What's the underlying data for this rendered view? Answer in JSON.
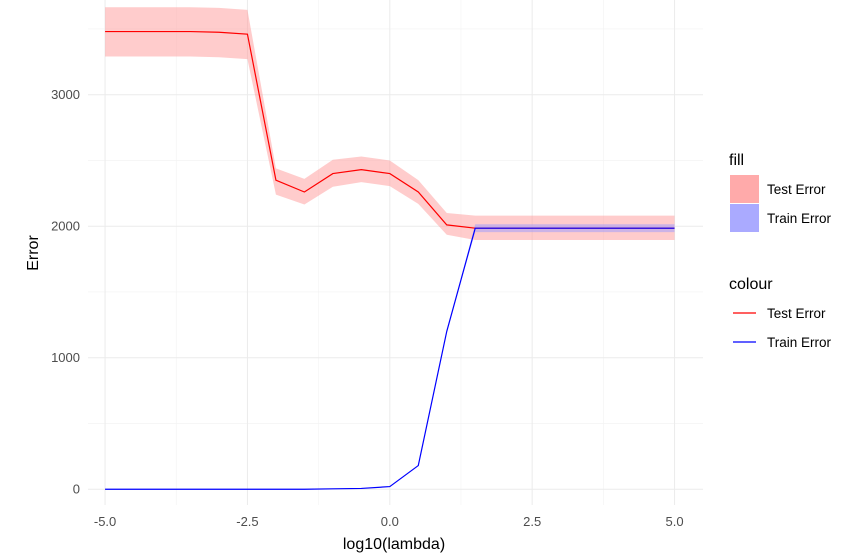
{
  "chart_data": {
    "type": "line",
    "x_values": [
      -5,
      -4.5,
      -4,
      -3.5,
      -3,
      -2.5,
      -2,
      -1.5,
      -1,
      -0.5,
      0,
      0.5,
      1,
      1.5,
      2,
      2.5,
      3,
      3.5,
      4,
      4.5,
      5
    ],
    "series": [
      {
        "name": "Test Error",
        "color": "#ff0000",
        "fill_color": "#ff9999",
        "values": [
          3480,
          3480,
          3480,
          3480,
          3475,
          3460,
          2350,
          2260,
          2400,
          2430,
          2400,
          2260,
          2010,
          1985,
          1985,
          1985,
          1985,
          1985,
          1985,
          1985,
          1985
        ],
        "lower": [
          3290,
          3290,
          3290,
          3290,
          3285,
          3270,
          2240,
          2165,
          2300,
          2335,
          2305,
          2170,
          1935,
          1895,
          1895,
          1895,
          1895,
          1895,
          1895,
          1895,
          1895
        ],
        "upper": [
          3665,
          3665,
          3665,
          3665,
          3660,
          3645,
          2440,
          2360,
          2505,
          2530,
          2500,
          2350,
          2100,
          2080,
          2080,
          2080,
          2080,
          2080,
          2080,
          2080,
          2080
        ]
      },
      {
        "name": "Train Error",
        "color": "#0000ff",
        "fill_color": "#9999ff",
        "values": [
          0,
          0,
          0,
          0,
          0,
          0,
          0,
          0,
          3,
          6,
          20,
          180,
          1200,
          1985,
          1985,
          1985,
          1985,
          1985,
          1985,
          1985,
          1985
        ],
        "lower": [
          0,
          0,
          0,
          0,
          0,
          0,
          0,
          0,
          3,
          6,
          20,
          180,
          1200,
          1955,
          1955,
          1955,
          1955,
          1955,
          1955,
          1955,
          1955
        ],
        "upper": [
          0,
          0,
          0,
          0,
          0,
          0,
          0,
          0,
          3,
          6,
          20,
          180,
          1200,
          2015,
          2015,
          2015,
          2015,
          2015,
          2015,
          2015,
          2015
        ]
      }
    ],
    "xlabel": "log10(lambda)",
    "ylabel": "Error",
    "xlim": [
      -5.3,
      5.5
    ],
    "ylim": [
      -120,
      3720
    ],
    "x_ticks": [
      -5,
      -2.5,
      0,
      2.5,
      5
    ],
    "x_tick_labels": [
      "-5.0",
      "-2.5",
      "0.0",
      "2.5",
      "5.0"
    ],
    "y_ticks": [
      0,
      1000,
      2000,
      3000
    ],
    "y_tick_labels": [
      "0",
      "1000",
      "2000",
      "3000"
    ],
    "grid": true,
    "legend_position": "right",
    "legends": [
      {
        "title": "fill",
        "kind": "fill",
        "items": [
          {
            "label": "Test Error",
            "color": "#ffaaaa"
          },
          {
            "label": "Train Error",
            "color": "#aaaaff"
          }
        ]
      },
      {
        "title": "colour",
        "kind": "line",
        "items": [
          {
            "label": "Test Error",
            "color": "#ff0000"
          },
          {
            "label": "Train Error",
            "color": "#0000ff"
          }
        ]
      }
    ]
  }
}
